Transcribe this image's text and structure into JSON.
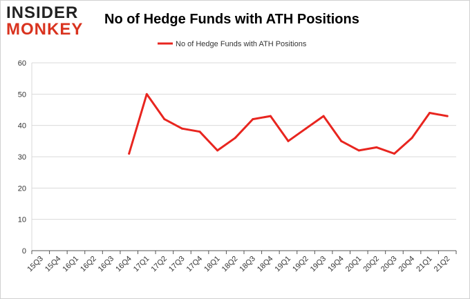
{
  "brand": {
    "logo_top": "INSIDER",
    "logo_bottom": "MONKEY"
  },
  "colors": {
    "series": "#e8251f",
    "grid": "#d9d9d9",
    "axis": "#555555"
  },
  "chart_data": {
    "type": "line",
    "title": "No of Hedge Funds with ATH Positions",
    "xlabel": "",
    "ylabel": "",
    "ylim": [
      0,
      60
    ],
    "yticks": [
      0,
      10,
      20,
      30,
      40,
      50,
      60
    ],
    "grid": "horizontal",
    "legend": "top-center",
    "categories": [
      "15Q3",
      "15Q4",
      "16Q1",
      "16Q2",
      "16Q3",
      "16Q4",
      "17Q1",
      "17Q2",
      "17Q3",
      "17Q4",
      "18Q1",
      "18Q2",
      "18Q3",
      "18Q4",
      "19Q1",
      "19Q2",
      "19Q3",
      "19Q4",
      "20Q1",
      "20Q2",
      "20Q3",
      "20Q4",
      "21Q1",
      "21Q2"
    ],
    "series": [
      {
        "name": "No of Hedge Funds with ATH Positions",
        "values": [
          null,
          null,
          null,
          null,
          null,
          31,
          50,
          42,
          39,
          38,
          32,
          36,
          42,
          43,
          35,
          39,
          43,
          35,
          32,
          33,
          31,
          36,
          44,
          43
        ]
      }
    ]
  }
}
